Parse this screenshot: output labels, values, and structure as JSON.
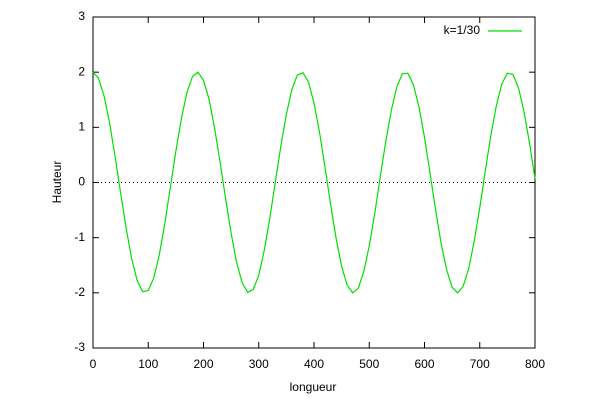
{
  "chart_data": {
    "type": "line",
    "xlabel": "longueur",
    "ylabel": "Hauteur",
    "x": [
      0,
      10,
      20,
      30,
      40,
      50,
      60,
      70,
      80,
      90,
      100,
      110,
      120,
      130,
      140,
      150,
      160,
      170,
      180,
      190,
      200,
      210,
      220,
      230,
      240,
      250,
      260,
      270,
      280,
      290,
      300,
      310,
      320,
      330,
      340,
      350,
      360,
      370,
      380,
      390,
      400,
      410,
      420,
      430,
      440,
      450,
      460,
      470,
      480,
      490,
      500,
      510,
      520,
      530,
      540,
      550,
      560,
      570,
      580,
      590,
      600,
      610,
      620,
      630,
      640,
      650,
      660,
      670,
      680,
      690,
      700,
      710,
      720,
      730,
      740,
      750,
      760,
      770,
      780,
      790,
      800
    ],
    "series": [
      {
        "name": "k=1/30",
        "color": "#00e000",
        "values": [
          2,
          1.89,
          1.57,
          1.08,
          0.47,
          -0.19,
          -0.83,
          -1.38,
          -1.78,
          -1.98,
          -1.96,
          -1.73,
          -1.31,
          -0.74,
          -0.09,
          0.57,
          1.16,
          1.63,
          1.92,
          2.0,
          1.85,
          1.51,
          0.99,
          0.37,
          -0.29,
          -0.92,
          -1.45,
          -1.82,
          -1.99,
          -1.94,
          -1.68,
          -1.23,
          -0.65,
          0.01,
          0.66,
          1.24,
          1.69,
          1.95,
          1.99,
          1.82,
          1.44,
          0.91,
          0.27,
          -0.39,
          -1.01,
          -1.52,
          -1.86,
          -2.0,
          -1.92,
          -1.62,
          -1.15,
          -0.56,
          0.11,
          0.75,
          1.31,
          1.74,
          1.97,
          1.98,
          1.77,
          1.37,
          0.82,
          0.17,
          -0.49,
          -1.1,
          -1.58,
          -1.9,
          -2.0,
          -1.88,
          -1.56,
          -1.06,
          -0.46,
          0.21,
          0.85,
          1.39,
          1.79,
          1.98,
          1.96,
          1.72,
          1.29,
          0.72,
          0.07
        ]
      }
    ],
    "xlim": [
      0,
      800
    ],
    "xticks": [
      0,
      100,
      200,
      300,
      400,
      500,
      600,
      700,
      800
    ],
    "ylim": [
      -3,
      3
    ],
    "yticks": [
      -3,
      -2,
      -1,
      0,
      1,
      2,
      3
    ],
    "zero_axis": true,
    "grid": false,
    "legend": "top-right"
  }
}
